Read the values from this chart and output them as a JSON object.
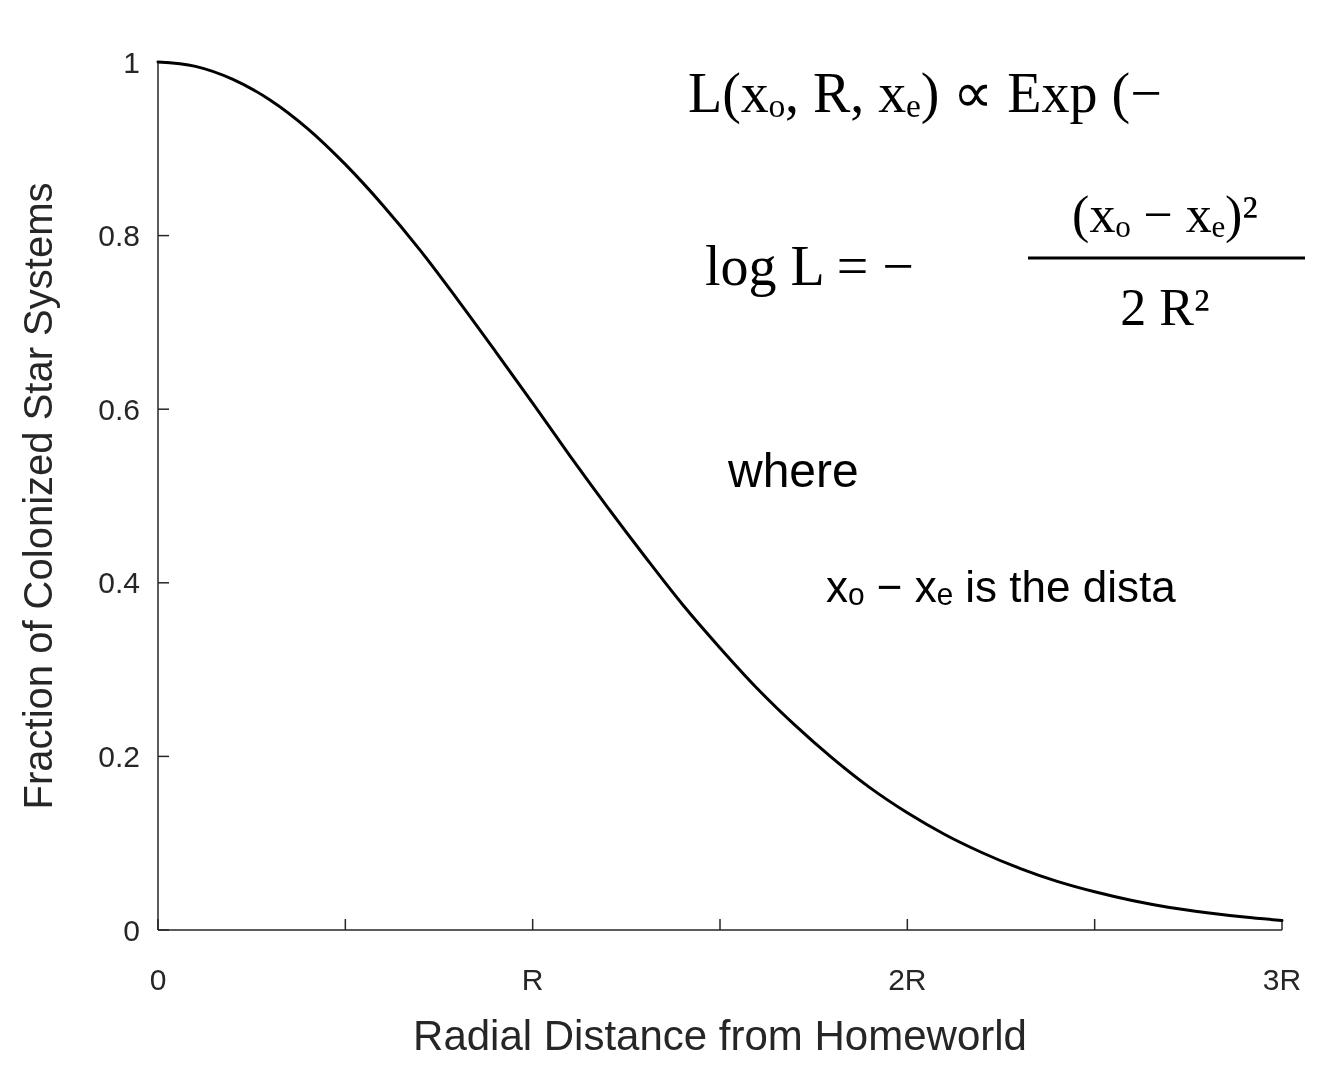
{
  "chart_data": {
    "type": "line",
    "xlabel": "Radial Distance from Homeworld",
    "ylabel": "Fraction of Colonized Star Systems",
    "x": [
      0,
      0.1,
      0.2,
      0.3,
      0.4,
      0.5,
      0.6,
      0.7,
      0.8,
      0.9,
      1,
      1.1,
      1.2,
      1.3,
      1.4,
      1.5,
      1.6,
      1.7,
      1.8,
      1.9,
      2,
      2.1,
      2.2,
      2.3,
      2.4,
      2.5,
      2.6,
      2.7,
      2.8,
      2.9,
      3
    ],
    "series": [
      {
        "color": "#000000",
        "values": [
          1,
          0.995,
          0.98,
          0.956,
          0.923,
          0.882,
          0.835,
          0.783,
          0.726,
          0.667,
          0.607,
          0.546,
          0.487,
          0.43,
          0.375,
          0.325,
          0.278,
          0.236,
          0.198,
          0.164,
          0.135,
          0.11,
          0.089,
          0.071,
          0.056,
          0.044,
          0.034,
          0.026,
          0.02,
          0.015,
          0.011
        ]
      }
    ],
    "xlim": [
      0,
      3
    ],
    "xticks": [
      0,
      {
        "value": 0.5,
        "label": null
      },
      {
        "value": 1,
        "label": "R"
      },
      {
        "value": 1.5,
        "label": null
      },
      {
        "value": 2,
        "label": "2R"
      },
      {
        "value": 2.5,
        "label": null
      },
      {
        "value": 3,
        "label": "3R"
      }
    ],
    "ylim": [
      0,
      1
    ],
    "yticks": [
      0,
      0.2,
      0.4,
      0.6,
      0.8,
      1
    ],
    "annotations": [
      "L(xₒ, R, xₑ)  ∝  Exp (−",
      "log L  =  −",
      "(xₒ − xₑ)²",
      "2 R²",
      "where",
      "xₒ − xₑ is the dista"
    ]
  }
}
